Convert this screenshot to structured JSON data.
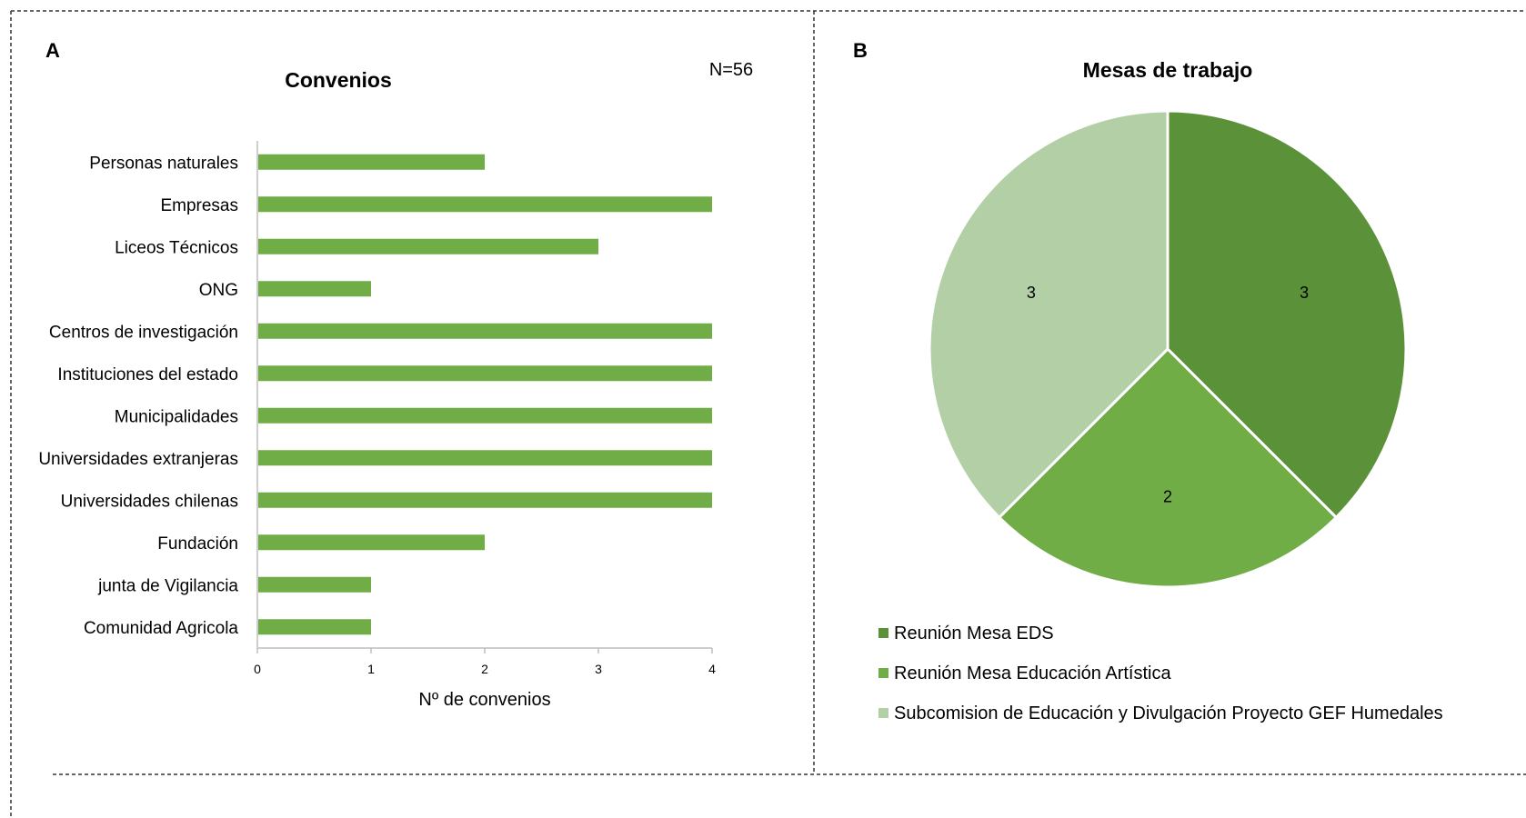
{
  "panels": {
    "a": {
      "letter": "A",
      "note": "N=56"
    },
    "b": {
      "letter": "B"
    }
  },
  "colors": {
    "bar": "#70ad47",
    "pie": [
      "#5b9138",
      "#70ad47",
      "#b3cfa5"
    ],
    "divider": "#333333",
    "axis": "#bfbfbf"
  },
  "chart_data": [
    {
      "type": "bar",
      "orientation": "horizontal",
      "title": "Convenios",
      "categories": [
        "Personas naturales",
        "Empresas",
        "Liceos Técnicos",
        "ONG",
        "Centros de investigación",
        "Instituciones del estado",
        "Municipalidades",
        "Universidades extranjeras",
        "Universidades chilenas",
        "Fundación",
        "junta de Vigilancia",
        "Comunidad Agricola"
      ],
      "values": [
        2,
        4,
        3,
        1,
        4,
        4,
        4,
        4,
        4,
        2,
        1,
        1
      ],
      "xlabel": "Nº de convenios",
      "ylabel": "",
      "xlim": [
        0,
        4
      ],
      "ticks": [
        "0",
        "1",
        "2",
        "3",
        "4"
      ],
      "grid": false
    },
    {
      "type": "pie",
      "title": "Mesas de trabajo",
      "labels": [
        "Reunión Mesa EDS",
        "Reunión Mesa Educación Artística",
        "Subcomision de Educación y Divulgación Proyecto GEF Humedales"
      ],
      "values": [
        3,
        2,
        3
      ],
      "data_labels": [
        "3",
        "2",
        "3"
      ],
      "legend": "bottom-left"
    }
  ]
}
